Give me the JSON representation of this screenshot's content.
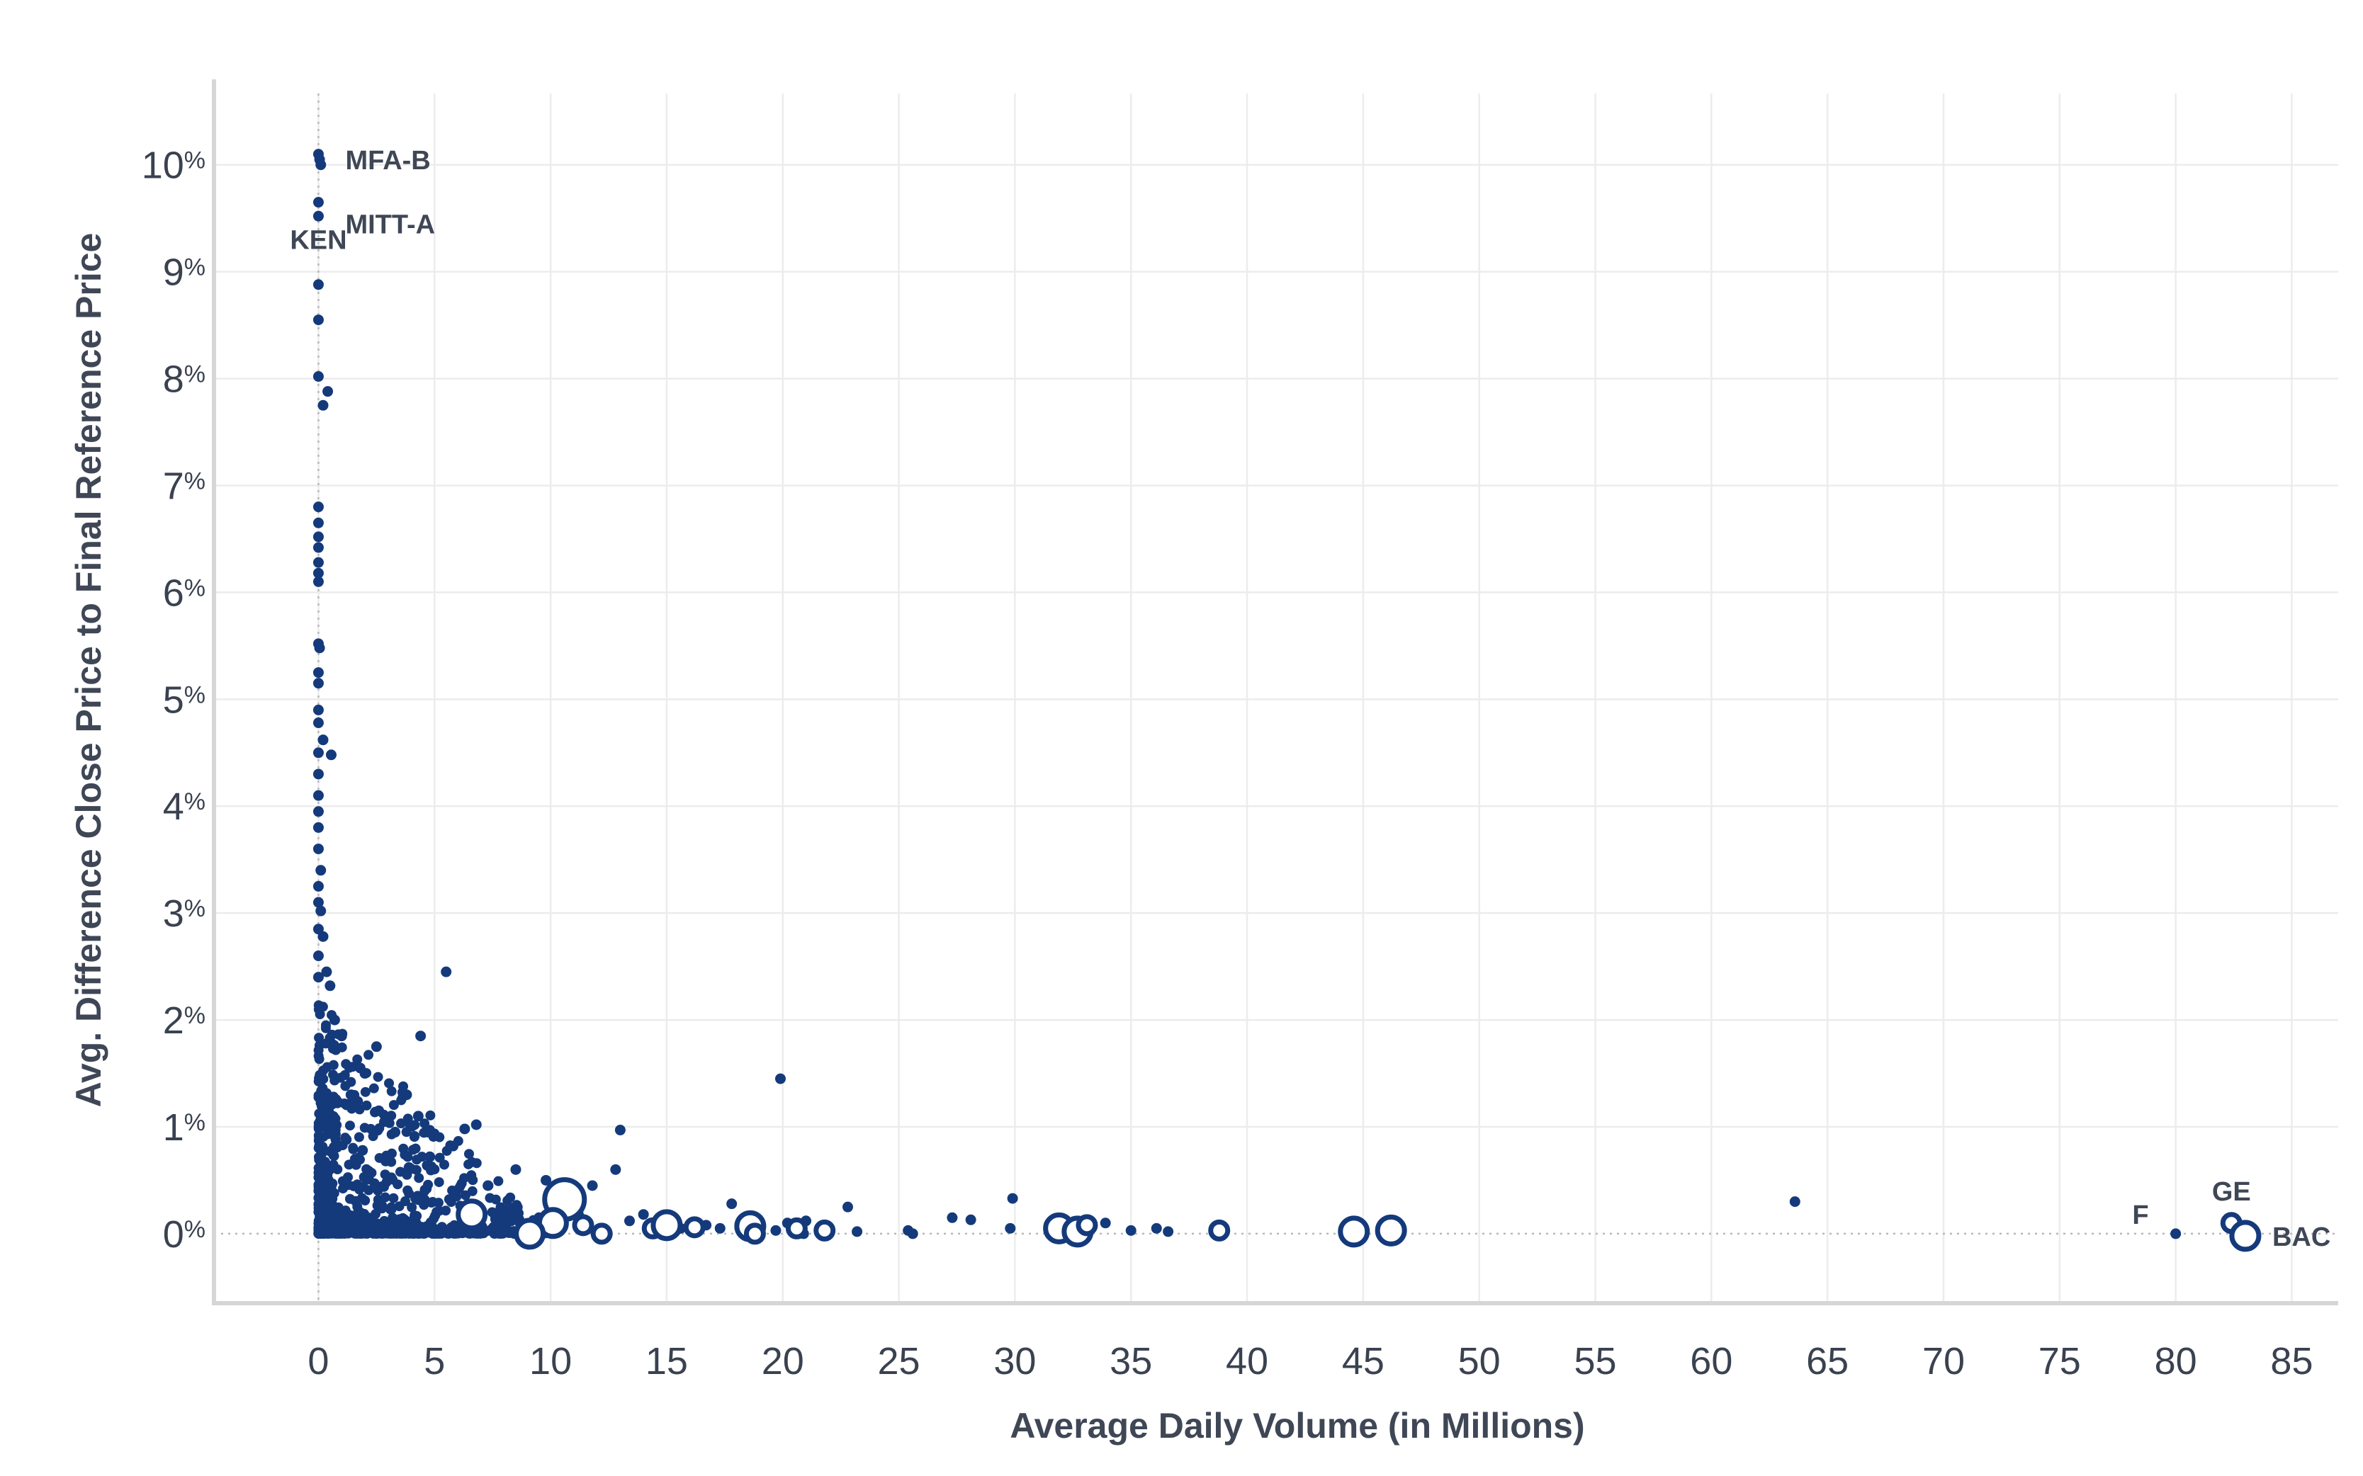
{
  "chart_data": {
    "type": "scatter",
    "xlabel": "Average Daily Volume (in Millions)",
    "ylabel": "Avg. Difference Close Price to Final Reference Price",
    "xlim": [
      -4.5,
      87
    ],
    "ylim": [
      -0.65,
      10.8
    ],
    "x_ticks": [
      0,
      5,
      10,
      15,
      20,
      25,
      30,
      35,
      40,
      45,
      50,
      55,
      60,
      65,
      70,
      75,
      80,
      85
    ],
    "y_ticks": [
      {
        "value": 0,
        "label": "0",
        "suffix": "%"
      },
      {
        "value": 1,
        "label": "1",
        "suffix": "%"
      },
      {
        "value": 2,
        "label": "2",
        "suffix": "%"
      },
      {
        "value": 3,
        "label": "3",
        "suffix": "%"
      },
      {
        "value": 4,
        "label": "4",
        "suffix": "%"
      },
      {
        "value": 5,
        "label": "5",
        "suffix": "%"
      },
      {
        "value": 6,
        "label": "6",
        "suffix": "%"
      },
      {
        "value": 7,
        "label": "7",
        "suffix": "%"
      },
      {
        "value": 8,
        "label": "8",
        "suffix": "%"
      },
      {
        "value": 9,
        "label": "9",
        "suffix": "%"
      },
      {
        "value": 10,
        "label": "10",
        "suffix": "%"
      }
    ],
    "grid": true,
    "marker_color": "#143a7b",
    "reference_line": {
      "y": 0,
      "style": "dotted"
    },
    "points": [
      {
        "x": 0.0,
        "y": 10.1
      },
      {
        "x": 0.05,
        "y": 10.05
      },
      {
        "x": 0.1,
        "y": 10.0
      },
      {
        "x": 0.0,
        "y": 9.65
      },
      {
        "x": 0.0,
        "y": 9.52
      },
      {
        "x": 0.0,
        "y": 8.88
      },
      {
        "x": 0.0,
        "y": 8.55
      },
      {
        "x": 0.0,
        "y": 8.02
      },
      {
        "x": 0.4,
        "y": 7.88
      },
      {
        "x": 0.2,
        "y": 7.75
      },
      {
        "x": 0.0,
        "y": 6.8
      },
      {
        "x": 0.0,
        "y": 6.65
      },
      {
        "x": 0.0,
        "y": 6.52
      },
      {
        "x": 0.0,
        "y": 6.42
      },
      {
        "x": 0.0,
        "y": 6.28
      },
      {
        "x": 0.0,
        "y": 6.18
      },
      {
        "x": 0.0,
        "y": 6.1
      },
      {
        "x": 0.0,
        "y": 5.52
      },
      {
        "x": 0.05,
        "y": 5.48
      },
      {
        "x": 0.0,
        "y": 5.25
      },
      {
        "x": 0.0,
        "y": 5.15
      },
      {
        "x": 0.0,
        "y": 4.9
      },
      {
        "x": 0.0,
        "y": 4.78
      },
      {
        "x": 0.2,
        "y": 4.62
      },
      {
        "x": 0.55,
        "y": 4.48
      },
      {
        "x": 0.0,
        "y": 4.5
      },
      {
        "x": 0.0,
        "y": 4.3
      },
      {
        "x": 0.0,
        "y": 4.1
      },
      {
        "x": 0.0,
        "y": 3.95
      },
      {
        "x": 0.0,
        "y": 3.8
      },
      {
        "x": 0.0,
        "y": 3.6
      },
      {
        "x": 0.1,
        "y": 3.4
      },
      {
        "x": 0.0,
        "y": 3.25
      },
      {
        "x": 0.0,
        "y": 3.1
      },
      {
        "x": 0.1,
        "y": 3.02
      },
      {
        "x": 0.0,
        "y": 2.85
      },
      {
        "x": 0.2,
        "y": 2.78
      },
      {
        "x": 0.0,
        "y": 2.6
      },
      {
        "x": 0.35,
        "y": 2.45
      },
      {
        "x": 0.0,
        "y": 2.4
      },
      {
        "x": 0.5,
        "y": 2.32
      },
      {
        "x": 5.5,
        "y": 2.45
      },
      {
        "x": 4.4,
        "y": 1.85
      },
      {
        "x": 2.5,
        "y": 1.75
      },
      {
        "x": 1.8,
        "y": 1.55
      },
      {
        "x": 2.0,
        "y": 1.5
      },
      {
        "x": 1.0,
        "y": 1.85
      },
      {
        "x": 0.7,
        "y": 2.0
      },
      {
        "x": 1.4,
        "y": 1.3
      },
      {
        "x": 2.6,
        "y": 1.15
      },
      {
        "x": 3.8,
        "y": 1.3
      },
      {
        "x": 4.3,
        "y": 1.1
      },
      {
        "x": 3.3,
        "y": 0.95
      },
      {
        "x": 6.3,
        "y": 0.98
      },
      {
        "x": 6.8,
        "y": 1.02
      },
      {
        "x": 5.8,
        "y": 0.82
      },
      {
        "x": 4.8,
        "y": 0.72
      },
      {
        "x": 3.9,
        "y": 0.62
      },
      {
        "x": 2.9,
        "y": 0.68
      },
      {
        "x": 1.9,
        "y": 0.78
      },
      {
        "x": 1.2,
        "y": 0.88
      },
      {
        "x": 13.0,
        "y": 0.97
      },
      {
        "x": 19.9,
        "y": 1.45
      },
      {
        "x": 8.5,
        "y": 0.6
      },
      {
        "x": 12.8,
        "y": 0.6
      },
      {
        "x": 11.8,
        "y": 0.45
      },
      {
        "x": 7.3,
        "y": 0.45
      },
      {
        "x": 9.8,
        "y": 0.5
      },
      {
        "x": 29.9,
        "y": 0.33
      },
      {
        "x": 22.8,
        "y": 0.25
      },
      {
        "x": 17.8,
        "y": 0.28
      },
      {
        "x": 63.6,
        "y": 0.3
      },
      {
        "x": 27.3,
        "y": 0.15
      },
      {
        "x": 28.1,
        "y": 0.13
      },
      {
        "x": 33.9,
        "y": 0.1
      },
      {
        "x": 35.0,
        "y": 0.03
      },
      {
        "x": 36.1,
        "y": 0.05
      },
      {
        "x": 36.6,
        "y": 0.02
      },
      {
        "x": 25.4,
        "y": 0.03
      },
      {
        "x": 25.6,
        "y": 0.0
      },
      {
        "x": 23.2,
        "y": 0.02
      },
      {
        "x": 21.0,
        "y": 0.12
      },
      {
        "x": 20.2,
        "y": 0.1
      },
      {
        "x": 29.8,
        "y": 0.05
      },
      {
        "x": 32.1,
        "y": 0.02
      },
      {
        "x": 14.0,
        "y": 0.18
      },
      {
        "x": 13.4,
        "y": 0.12
      },
      {
        "x": 11.2,
        "y": 0.18
      },
      {
        "x": 9.5,
        "y": 0.15
      },
      {
        "x": 8.3,
        "y": 0.12
      },
      {
        "x": 7.6,
        "y": 0.18
      },
      {
        "x": 15.6,
        "y": 0.05
      },
      {
        "x": 16.7,
        "y": 0.08
      },
      {
        "x": 17.3,
        "y": 0.05
      },
      {
        "x": 19.7,
        "y": 0.03
      },
      {
        "x": 20.9,
        "y": 0.0
      },
      {
        "x": 80.0,
        "y": 0.0
      }
    ],
    "rings": [
      {
        "x": 10.6,
        "y": 0.32,
        "size": "large"
      },
      {
        "x": 6.6,
        "y": 0.18,
        "size": "medium"
      },
      {
        "x": 10.1,
        "y": 0.1,
        "size": "medium"
      },
      {
        "x": 11.4,
        "y": 0.08,
        "size": "small"
      },
      {
        "x": 12.2,
        "y": 0.0,
        "size": "small"
      },
      {
        "x": 9.1,
        "y": 0.0,
        "size": "medium"
      },
      {
        "x": 14.4,
        "y": 0.05,
        "size": "small"
      },
      {
        "x": 15.0,
        "y": 0.08,
        "size": "medium"
      },
      {
        "x": 16.2,
        "y": 0.06,
        "size": "small"
      },
      {
        "x": 18.6,
        "y": 0.07,
        "size": "medium"
      },
      {
        "x": 18.8,
        "y": 0.0,
        "size": "small"
      },
      {
        "x": 20.6,
        "y": 0.05,
        "size": "small"
      },
      {
        "x": 21.8,
        "y": 0.03,
        "size": "small"
      },
      {
        "x": 31.9,
        "y": 0.05,
        "size": "medium"
      },
      {
        "x": 32.7,
        "y": 0.02,
        "size": "medium"
      },
      {
        "x": 33.1,
        "y": 0.08,
        "size": "small"
      },
      {
        "x": 38.8,
        "y": 0.03,
        "size": "small"
      },
      {
        "x": 44.6,
        "y": 0.02,
        "size": "medium"
      },
      {
        "x": 46.2,
        "y": 0.03,
        "size": "medium"
      },
      {
        "x": 82.4,
        "y": 0.1,
        "size": "small"
      },
      {
        "x": 83.0,
        "y": -0.02,
        "size": "medium"
      }
    ],
    "dense_cluster": {
      "x_range": [
        0,
        10
      ],
      "y_range": [
        0,
        2.2
      ],
      "count": 900
    },
    "annotations": [
      {
        "text": "MFA-B",
        "x": 0.0,
        "y": 10.05,
        "anchor": "right"
      },
      {
        "text": "MITT-A",
        "x": 0.0,
        "y": 9.45,
        "anchor": "right"
      },
      {
        "text": "KEN",
        "x": 0.0,
        "y": 9.0,
        "anchor": "above"
      },
      {
        "text": "F",
        "x": 80.0,
        "y": 0.0,
        "anchor": "left"
      },
      {
        "text": "GE",
        "x": 82.4,
        "y": 0.1,
        "anchor": "above"
      },
      {
        "text": "BAC",
        "x": 83.0,
        "y": -0.02,
        "anchor": "right"
      }
    ]
  }
}
